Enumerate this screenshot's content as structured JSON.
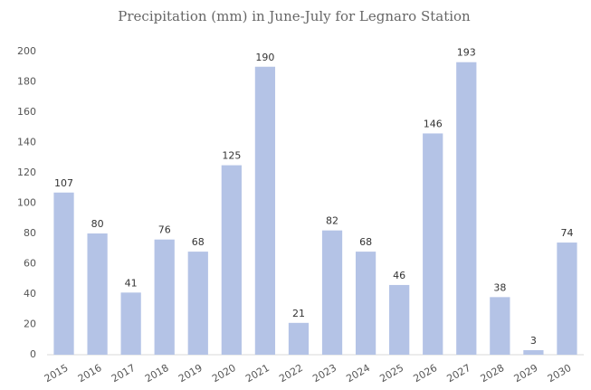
{
  "chart_data": {
    "type": "bar",
    "title": "Precipitation (mm) in June-July for Legnaro Station",
    "categories": [
      "2015",
      "2016",
      "2017",
      "2018",
      "2019",
      "2020",
      "2021",
      "2022",
      "2023",
      "2024",
      "2025",
      "2026",
      "2027",
      "2028",
      "2029",
      "2030"
    ],
    "values": [
      107,
      80,
      41,
      76,
      68,
      125,
      190,
      21,
      82,
      68,
      46,
      146,
      193,
      38,
      3,
      74
    ],
    "color": "#b4c3e6",
    "ylim": [
      0,
      200
    ],
    "yticks": [
      0,
      20,
      40,
      60,
      80,
      100,
      120,
      140,
      160,
      180,
      200
    ],
    "grid": false
  }
}
